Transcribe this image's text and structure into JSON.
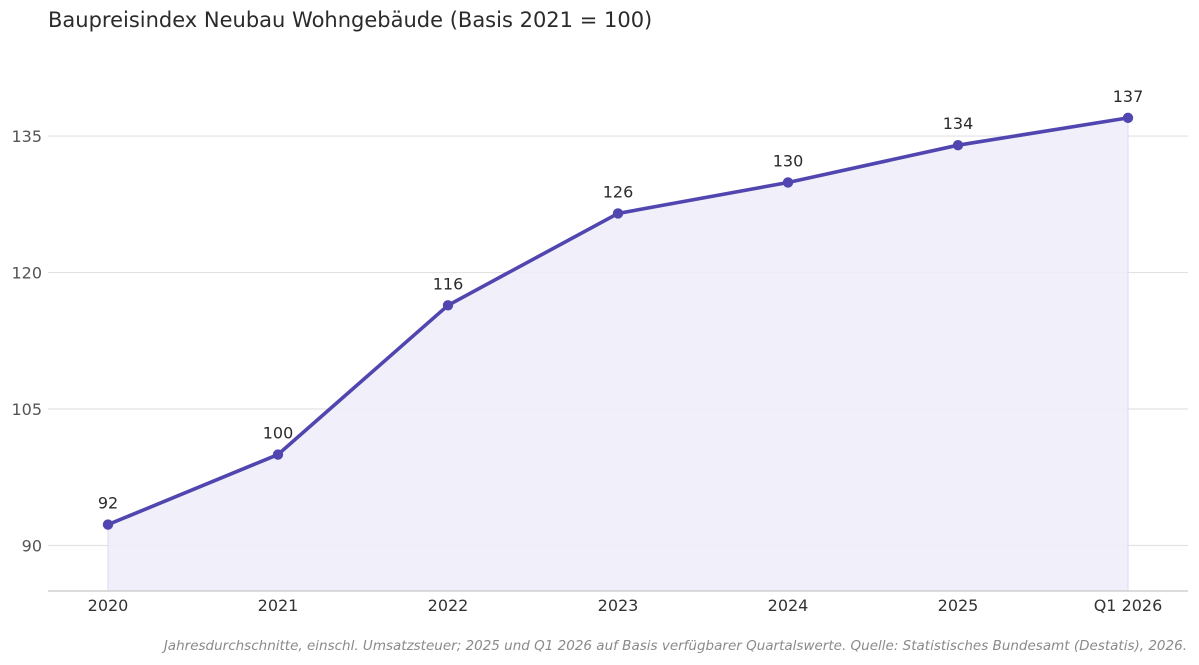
{
  "chart_data": {
    "type": "line",
    "title": "Baupreisindex Neubau Wohngebäude (Basis 2021 = 100)",
    "categories": [
      "2020",
      "2021",
      "2022",
      "2023",
      "2024",
      "2025",
      "Q1 2026"
    ],
    "series": [
      {
        "values": [
          92.3,
          100,
          116.4,
          126.5,
          129.9,
          134,
          137
        ],
        "data_labels": [
          "92",
          "100",
          "116",
          "126",
          "130",
          "134",
          "137"
        ]
      }
    ],
    "yticks": [
      90,
      105,
      120,
      135
    ],
    "ylim": [
      85,
      146
    ],
    "grid": true,
    "area_fill": true,
    "colors": {
      "line": "#5146b0",
      "fill": "#efedf9",
      "grid": "#e2e2e2",
      "axis": "#c8c8c8"
    },
    "note": "Jahresdurchschnitte, einschl. Umsatzsteuer; 2025 und Q1 2026 auf Basis verfügbarer Quartalswerte. Quelle: Statistisches Bundesamt (Destatis), 2026."
  }
}
